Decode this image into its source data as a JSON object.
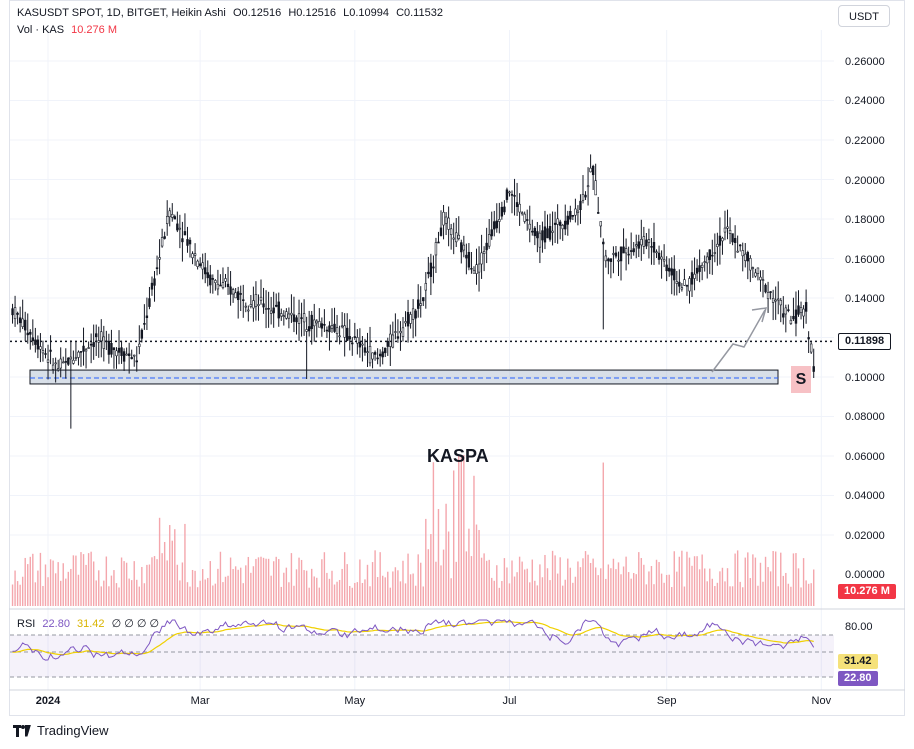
{
  "legend": {
    "symbol_line": "KASUSDT SPOT, 1D, BITGET, Heikin Ashi",
    "open": "O0.12516",
    "high": "H0.12516",
    "low": "L0.10994",
    "close": "C0.11532",
    "vol_label": "Vol · KAS",
    "vol_value": "10.276 M"
  },
  "currency_button": "USDT",
  "watermark_text": "KASPA",
  "support_badge": "S",
  "rsi_legend": {
    "label": "RSI",
    "value1": "22.80",
    "value2": "31.42",
    "placeholders": "∅ ∅ ∅ ∅"
  },
  "axis_tags": {
    "current_price": "0.11898",
    "volume": "10.276 M",
    "rsi_ma": "31.42",
    "rsi": "22.80"
  },
  "price_axis_labels": [
    "0.26000",
    "0.24000",
    "0.22000",
    "0.20000",
    "0.18000",
    "0.16000",
    "0.14000",
    "0.10000",
    "0.08000",
    "0.06000",
    "0.04000",
    "0.02000",
    "0.00000"
  ],
  "rsi_axis_label": "80.00",
  "x_axis_labels": [
    "2024",
    "Mar",
    "May",
    "Jul",
    "Sep",
    "Nov"
  ],
  "branding": "TradingView",
  "colors": {
    "bull": "#131722",
    "bear": "#131722",
    "volume": "#f4a6ac",
    "rsi_line": "#7e57c2",
    "rsi_ma": "#f0d000",
    "support_zone": "#b8c4d6",
    "grid": "#f0f3fa"
  },
  "chart_data": {
    "type": "candlestick",
    "x_range": [
      "2023-12-17",
      "2024-11-06"
    ],
    "price_range": [
      0.06,
      0.27
    ],
    "current_price": 0.11898,
    "support_zone": [
      0.0975,
      0.1045
    ],
    "support_line": 0.1005,
    "series_anchor_points": [
      {
        "date": "2023-12-18",
        "price": 0.135
      },
      {
        "date": "2024-01-05",
        "price": 0.105
      },
      {
        "date": "2024-01-20",
        "price": 0.12
      },
      {
        "date": "2024-02-05",
        "price": 0.11
      },
      {
        "date": "2024-02-12",
        "price": 0.15
      },
      {
        "date": "2024-02-18",
        "price": 0.185
      },
      {
        "date": "2024-03-05",
        "price": 0.15
      },
      {
        "date": "2024-03-20",
        "price": 0.14
      },
      {
        "date": "2024-04-10",
        "price": 0.13
      },
      {
        "date": "2024-04-25",
        "price": 0.125
      },
      {
        "date": "2024-05-10",
        "price": 0.11
      },
      {
        "date": "2024-05-28",
        "price": 0.14
      },
      {
        "date": "2024-06-05",
        "price": 0.18
      },
      {
        "date": "2024-06-18",
        "price": 0.155
      },
      {
        "date": "2024-07-01",
        "price": 0.195
      },
      {
        "date": "2024-07-12",
        "price": 0.17
      },
      {
        "date": "2024-07-28",
        "price": 0.185
      },
      {
        "date": "2024-08-03",
        "price": 0.205
      },
      {
        "date": "2024-08-08",
        "price": 0.16
      },
      {
        "date": "2024-08-25",
        "price": 0.17
      },
      {
        "date": "2024-09-08",
        "price": 0.145
      },
      {
        "date": "2024-09-25",
        "price": 0.175
      },
      {
        "date": "2024-10-08",
        "price": 0.15
      },
      {
        "date": "2024-10-20",
        "price": 0.13
      },
      {
        "date": "2024-10-26",
        "price": 0.135
      },
      {
        "date": "2024-10-29",
        "price": 0.105
      }
    ]
  }
}
